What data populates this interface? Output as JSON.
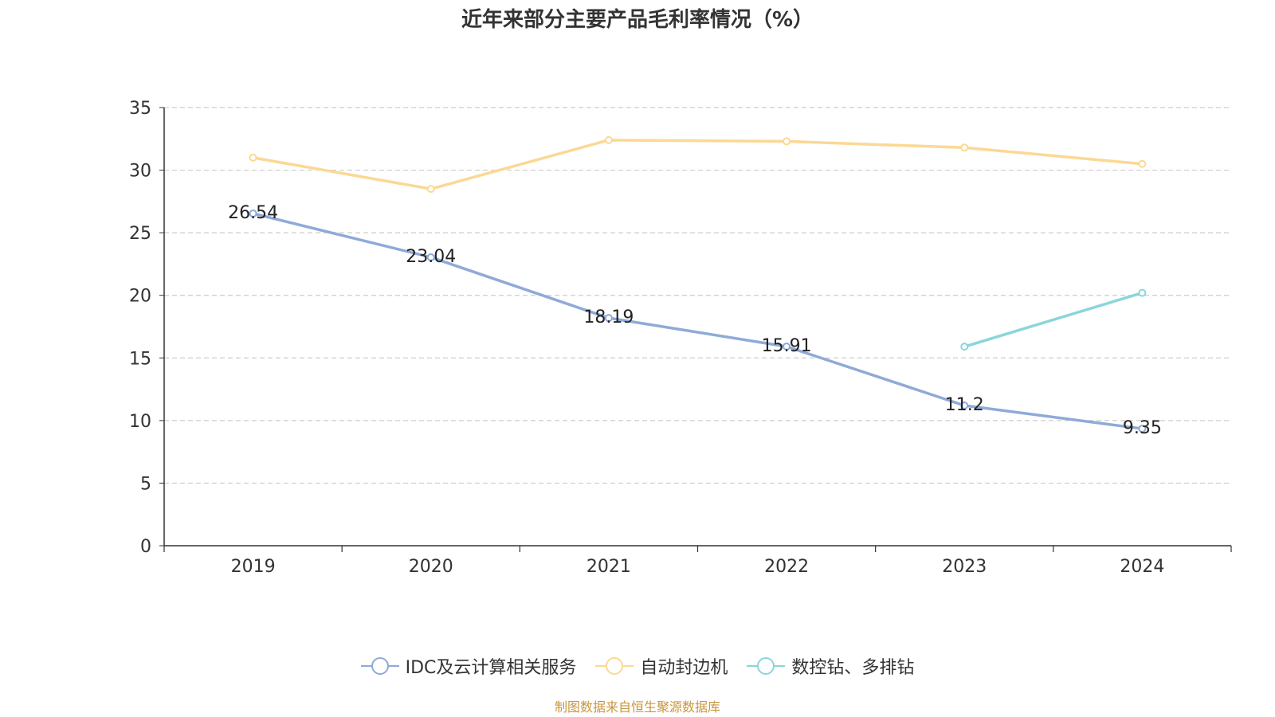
{
  "chart_data": {
    "type": "line",
    "title": "近年来部分主要产品毛利率情况（%）",
    "categories": [
      "2019",
      "2020",
      "2021",
      "2022",
      "2023",
      "2024"
    ],
    "ylim": [
      0,
      35
    ],
    "yticks": [
      0,
      5,
      10,
      15,
      20,
      25,
      30,
      35
    ],
    "grid": true,
    "legend_position": "bottom",
    "series": [
      {
        "name": "IDC及云计算相关服务",
        "color": "#8eaad8",
        "values": [
          26.54,
          23.04,
          18.19,
          15.91,
          11.2,
          9.35
        ],
        "show_labels": true
      },
      {
        "name": "自动封边机",
        "color": "#fcd894",
        "values": [
          31.0,
          28.5,
          32.4,
          32.3,
          31.8,
          30.5
        ],
        "show_labels": false
      },
      {
        "name": "数控钻、多排钻",
        "color": "#8ad6da",
        "values": [
          null,
          null,
          null,
          null,
          15.9,
          20.2
        ],
        "show_labels": false
      }
    ]
  },
  "source": {
    "text": "制图数据来自恒生聚源数据库",
    "color": "#c8963c"
  }
}
